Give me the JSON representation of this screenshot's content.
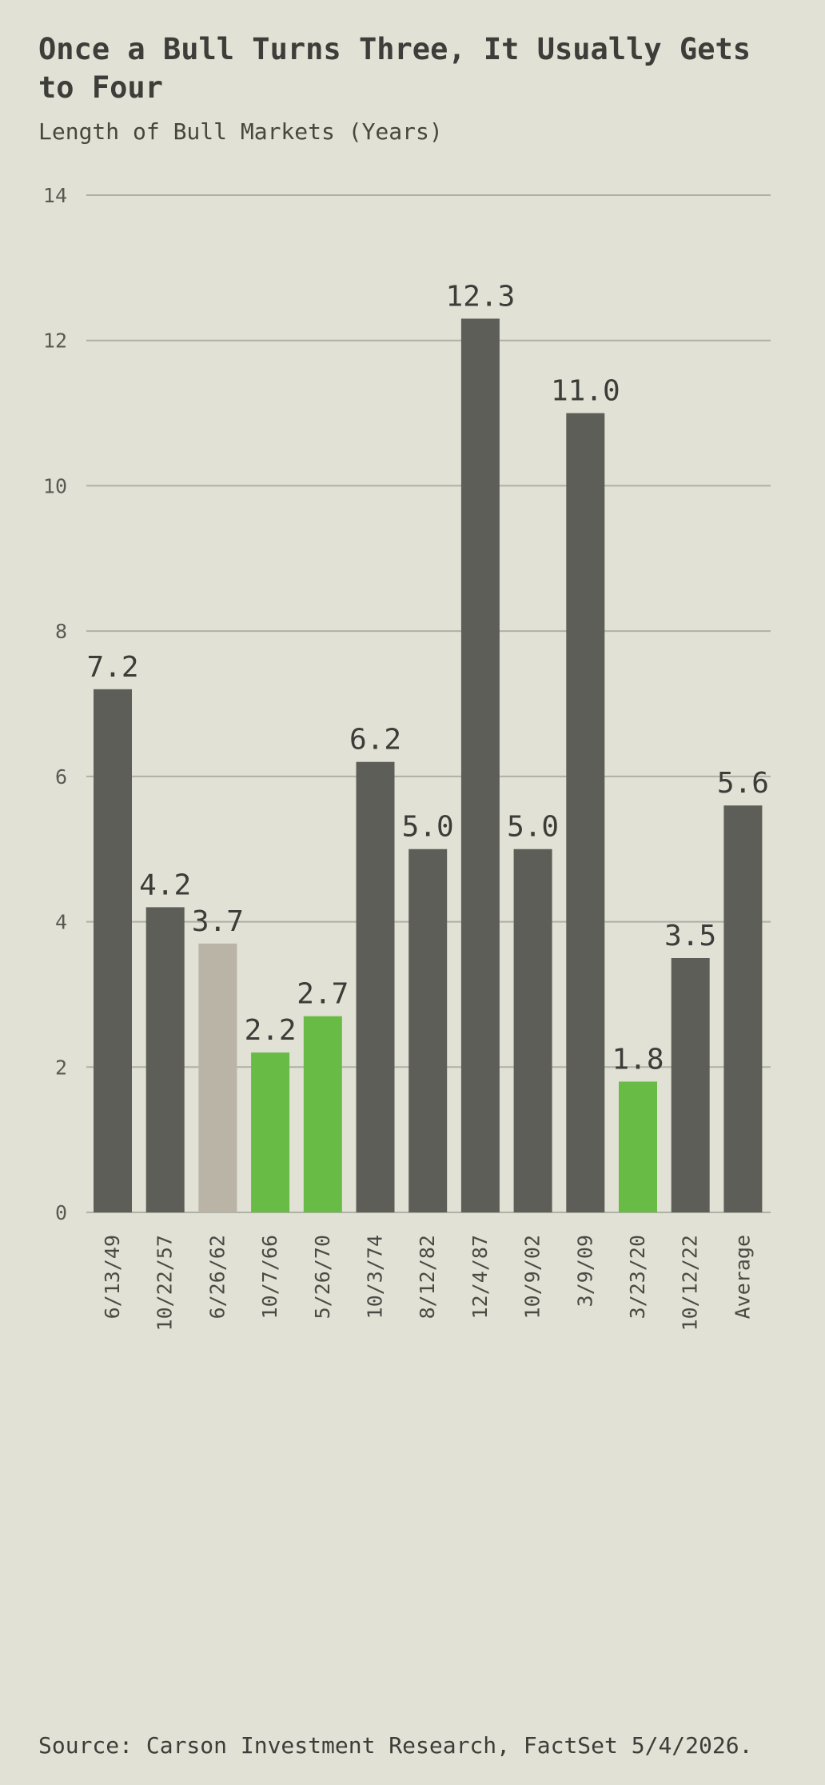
{
  "header": {
    "title": "Once a Bull Turns Three, It Usually Gets to Four",
    "subtitle": "Length of Bull Markets (Years)"
  },
  "footer": {
    "source": "Source: Carson Investment Research, FactSet 5/4/2026."
  },
  "colors": {
    "background": "#e1e1d5",
    "dark_bar": "#5e5e58",
    "highlight_bar": "#68bb45",
    "current_bar": "#bab4a6",
    "gridline": "#aeb1a6",
    "text": "#3c3c38"
  },
  "chart_data": {
    "type": "bar",
    "title": "Once a Bull Turns Three, It Usually Gets to Four",
    "subtitle": "Length of Bull Markets (Years)",
    "categories": [
      "6/13/49",
      "10/22/57",
      "6/26/62",
      "10/7/66",
      "5/26/70",
      "10/3/74",
      "8/12/82",
      "12/4/87",
      "10/9/02",
      "3/9/09",
      "3/23/20",
      "10/12/22",
      "Average"
    ],
    "values": [
      7.2,
      4.2,
      3.7,
      2.2,
      2.7,
      6.2,
      5.0,
      12.3,
      5.0,
      11.0,
      1.8,
      3.5,
      5.6
    ],
    "value_labels": [
      "7.2",
      "4.2",
      "3.7",
      "2.2",
      "2.7",
      "6.2",
      "5.0",
      "12.3",
      "5.0",
      "11.0",
      "1.8",
      "3.5",
      "5.6"
    ],
    "bar_colors": [
      "#5e5e58",
      "#5e5e58",
      "#bab4a6",
      "#68bb45",
      "#68bb45",
      "#5e5e58",
      "#5e5e58",
      "#5e5e58",
      "#5e5e58",
      "#5e5e58",
      "#68bb45",
      "#5e5e58",
      "#5e5e58"
    ],
    "yticks": [
      "0",
      "2",
      "4",
      "6",
      "8",
      "10",
      "12",
      "14"
    ],
    "ylim": [
      0,
      14
    ],
    "xlabel": "",
    "ylabel": "",
    "grid": true,
    "legend": "none"
  }
}
